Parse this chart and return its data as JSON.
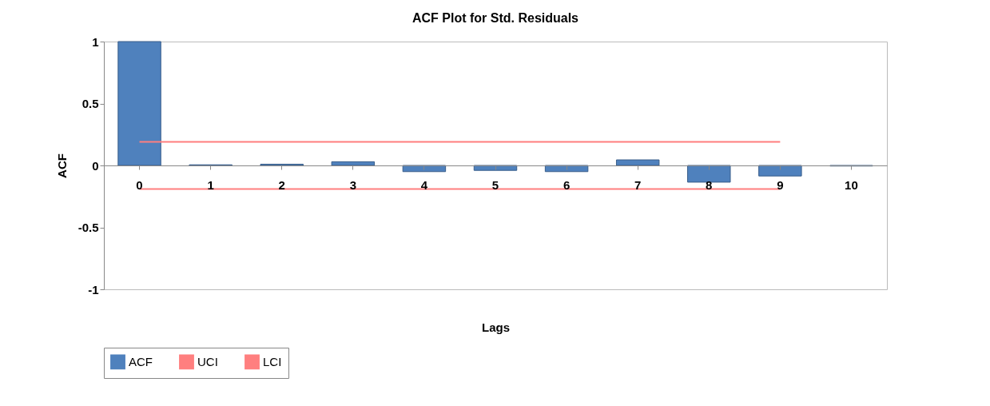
{
  "chart_data": {
    "type": "bar",
    "title": "ACF Plot for Std. Residuals",
    "xlabel": "Lags",
    "ylabel": "ACF",
    "categories": [
      "0",
      "1",
      "2",
      "3",
      "4",
      "5",
      "6",
      "7",
      "8",
      "9",
      "10"
    ],
    "series": [
      {
        "name": "ACF",
        "color": "#4f81bd",
        "values": [
          1,
          0.005,
          0.01,
          0.03,
          -0.05,
          -0.04,
          -0.05,
          0.045,
          -0.135,
          -0.085,
          -0.005
        ]
      },
      {
        "name": "UCI",
        "type": "line",
        "color": "#ff7f7f",
        "values": [
          0.19,
          0.19,
          0.19,
          0.19,
          0.19,
          0.19,
          0.19,
          0.19,
          0.19,
          0.19,
          null
        ]
      },
      {
        "name": "LCI",
        "type": "line",
        "color": "#ff7f7f",
        "values": [
          -0.19,
          -0.19,
          -0.19,
          -0.19,
          -0.19,
          -0.19,
          -0.19,
          -0.19,
          -0.19,
          -0.19,
          null
        ]
      }
    ],
    "ylim": [
      -1,
      1
    ],
    "yticks": [
      -1,
      -0.5,
      0,
      0.5,
      1
    ],
    "grid": false,
    "legend": "bottom"
  }
}
